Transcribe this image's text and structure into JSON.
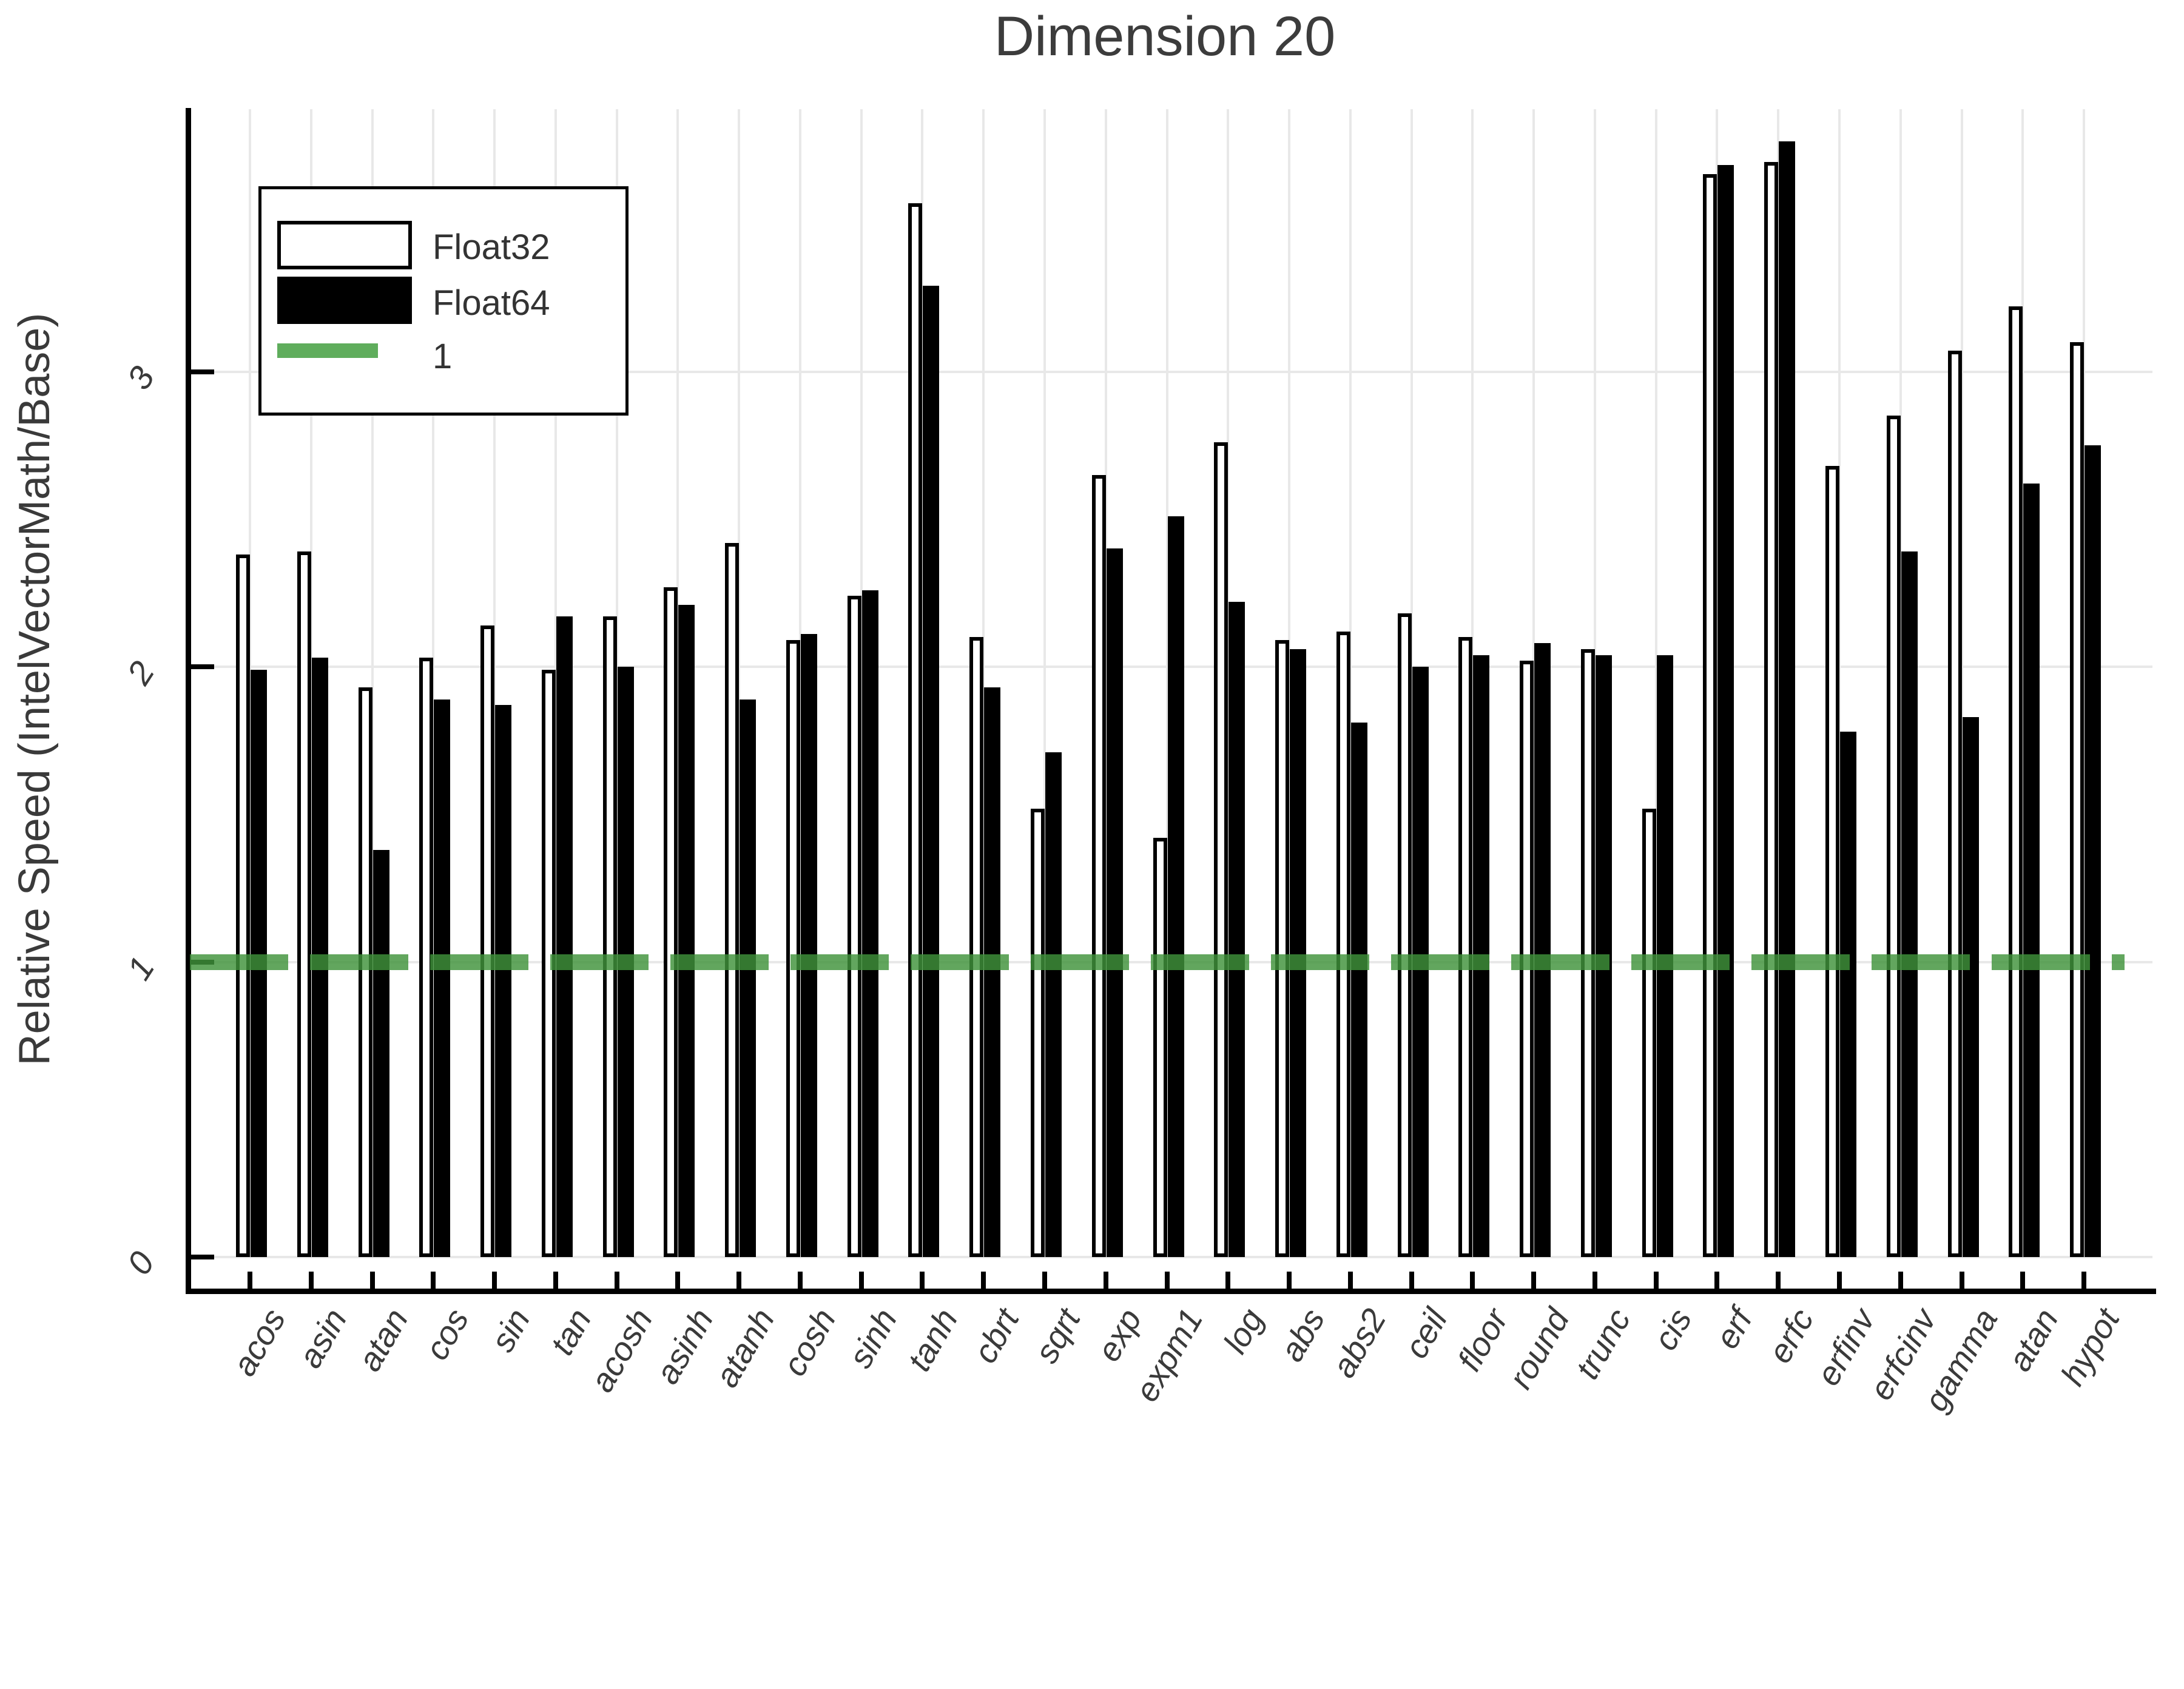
{
  "title": "Dimension 20",
  "y_axis": {
    "label": "Relative Speed (IntelVectorMath/Base)",
    "tick_labels": [
      "0",
      "1",
      "2",
      "3"
    ]
  },
  "legend": {
    "float32_label": "Float32",
    "float64_label": "Float64",
    "reference_label": "1"
  },
  "colors": {
    "float32_fill": "#ffffff",
    "float64_fill": "#000000",
    "bar_outline": "#000000",
    "reference_green": "rgba(63,146,58,0.82)",
    "legend_green": "#5fad5c",
    "grid": "#e8e8e8",
    "text": "#3a3a3a"
  },
  "chart_data": {
    "type": "bar",
    "title": "Dimension 20",
    "ylabel": "Relative Speed (IntelVectorMath/Base)",
    "xlabel": "",
    "yticks": [
      0,
      1,
      2,
      3
    ],
    "ylim": [
      0,
      3.9
    ],
    "grid": true,
    "legend_position": "top-left",
    "reference_line": 1,
    "categories": [
      "acos",
      "asin",
      "atan",
      "cos",
      "sin",
      "tan",
      "acosh",
      "asinh",
      "atanh",
      "cosh",
      "sinh",
      "tanh",
      "cbrt",
      "sqrt",
      "exp",
      "expm1",
      "log",
      "abs",
      "abs2",
      "ceil",
      "floor",
      "round",
      "trunc",
      "cis",
      "erf",
      "erfc",
      "erfinv",
      "erfcinv",
      "gamma",
      "atan",
      "hypot"
    ],
    "series": [
      {
        "name": "Float32",
        "values": [
          2.38,
          2.39,
          1.93,
          2.03,
          2.14,
          1.99,
          2.17,
          2.27,
          2.42,
          2.09,
          2.24,
          3.57,
          2.1,
          1.52,
          2.65,
          1.42,
          2.76,
          2.09,
          2.12,
          2.18,
          2.1,
          2.02,
          2.06,
          1.52,
          3.67,
          3.71,
          2.68,
          2.85,
          3.07,
          3.22,
          3.1
        ]
      },
      {
        "name": "Float64",
        "values": [
          1.99,
          2.03,
          1.38,
          1.89,
          1.87,
          2.17,
          2.0,
          2.21,
          1.89,
          2.11,
          2.26,
          3.29,
          1.93,
          1.71,
          2.4,
          2.51,
          2.22,
          2.06,
          1.81,
          2.0,
          2.04,
          2.08,
          2.04,
          2.04,
          3.7,
          3.78,
          1.78,
          2.39,
          1.83,
          2.62,
          2.75
        ]
      }
    ]
  }
}
